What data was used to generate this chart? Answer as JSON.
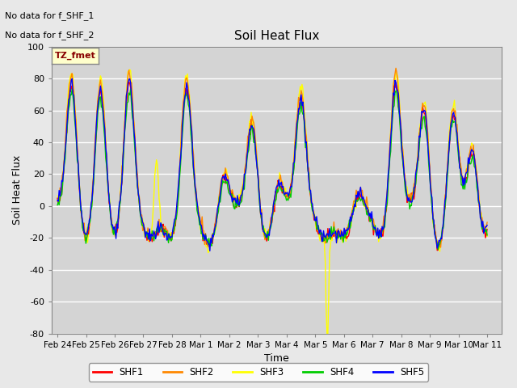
{
  "title": "Soil Heat Flux",
  "xlabel": "Time",
  "ylabel": "Soil Heat Flux",
  "ylim": [
    -80,
    100
  ],
  "yticks": [
    -80,
    -60,
    -40,
    -20,
    0,
    20,
    40,
    60,
    80,
    100
  ],
  "note1": "No data for f_SHF_1",
  "note2": "No data for f_SHF_2",
  "tz_label": "TZ_fmet",
  "legend_labels": [
    "SHF1",
    "SHF2",
    "SHF3",
    "SHF4",
    "SHF5"
  ],
  "colors": [
    "#ff0000",
    "#ff8800",
    "#ffff00",
    "#00cc00",
    "#0000ff"
  ],
  "background_color": "#e8e8e8",
  "plot_bg_color": "#d4d4d4",
  "grid_color": "#ffffff",
  "date_labels": [
    "Feb 24",
    "Feb 25",
    "Feb 26",
    "Feb 27",
    "Feb 28",
    "Mar 1",
    "Mar 2",
    "Mar 3",
    "Mar 4",
    "Mar 5",
    "Mar 6",
    "Mar 7",
    "Mar 8",
    "Mar 9",
    "Mar 10",
    "Mar 11"
  ],
  "n_points": 500
}
